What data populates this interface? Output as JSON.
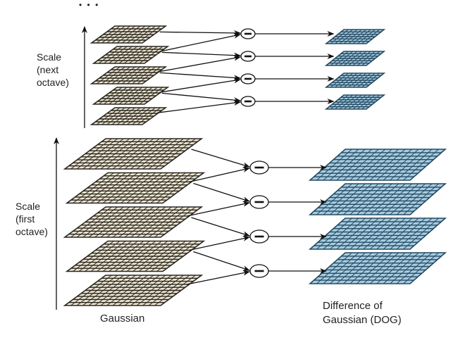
{
  "ellipsis": "• • •",
  "labels": {
    "next_octave": [
      "Scale",
      "(next",
      "octave)"
    ],
    "first_octave": [
      "Scale",
      "(first",
      "octave)"
    ],
    "gaussian": "Gaussian",
    "dog": [
      "Difference of",
      "Gaussian (DOG)"
    ],
    "minus": "−"
  },
  "colors": {
    "gaussian_fill": "#eee8d3",
    "gaussian_line": "#2a2620",
    "dog_fill": "#a8cde0",
    "dog_line": "#244a63",
    "arrow": "#111111"
  }
}
